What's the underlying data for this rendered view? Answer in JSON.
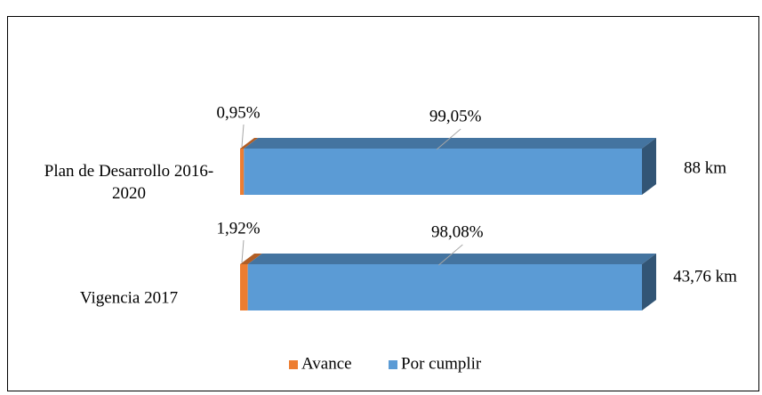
{
  "chart_data": {
    "type": "bar",
    "stacked": true,
    "horizontal": true,
    "categories": [
      "Plan de Desarrollo 2016-2020",
      "Vigencia 2017"
    ],
    "series": [
      {
        "name": "Avance",
        "color": "#ED7D31",
        "values": [
          0.95,
          1.92
        ],
        "value_labels": [
          "0,95%",
          "1,92%"
        ]
      },
      {
        "name": "Por cumplir",
        "color": "#5B9BD5",
        "values": [
          99.05,
          98.08
        ],
        "value_labels": [
          "99,05%",
          "98,08%"
        ]
      }
    ],
    "annotations": [
      "88 km",
      "43,76 km"
    ],
    "legend": "bottom"
  }
}
